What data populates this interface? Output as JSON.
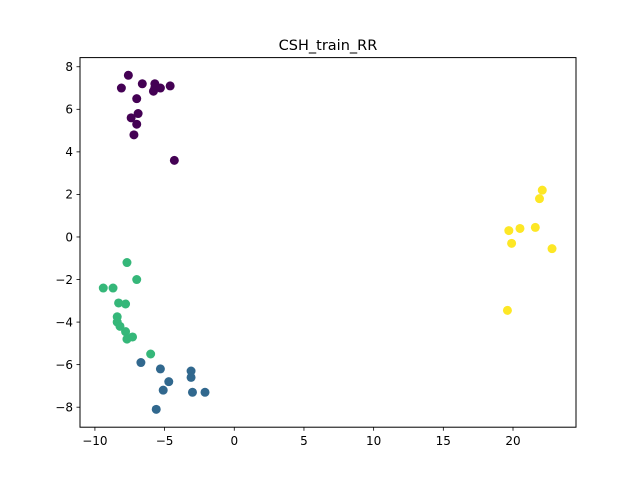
{
  "chart_data": {
    "type": "scatter",
    "title": "CSH_train_RR",
    "xlabel": "",
    "ylabel": "",
    "xlim": [
      -11.07,
      24.52
    ],
    "ylim": [
      -8.94,
      8.43
    ],
    "xticks": [
      -10,
      -5,
      0,
      5,
      10,
      15,
      20
    ],
    "yticks": [
      -8,
      -6,
      -4,
      -2,
      0,
      2,
      4,
      6,
      8
    ],
    "grid": false,
    "legend": "none",
    "colors": {
      "cluster0": "#440154",
      "cluster1": "#31688e",
      "cluster2": "#35b779",
      "cluster3": "#fde725"
    },
    "series": [
      {
        "color_key": "cluster0",
        "points": [
          [
            -7.6,
            7.6
          ],
          [
            -8.1,
            7.0
          ],
          [
            -6.6,
            7.2
          ],
          [
            -5.7,
            7.2
          ],
          [
            -5.7,
            7.0
          ],
          [
            -5.8,
            6.85
          ],
          [
            -5.3,
            7.0
          ],
          [
            -4.6,
            7.1
          ],
          [
            -7.0,
            6.5
          ],
          [
            -6.9,
            5.8
          ],
          [
            -7.4,
            5.6
          ],
          [
            -7.0,
            5.3
          ],
          [
            -7.2,
            4.8
          ],
          [
            -4.3,
            3.6
          ]
        ]
      },
      {
        "color_key": "cluster1",
        "points": [
          [
            -6.7,
            -5.9
          ],
          [
            -5.3,
            -6.2
          ],
          [
            -4.7,
            -6.8
          ],
          [
            -5.1,
            -7.2
          ],
          [
            -5.6,
            -8.1
          ],
          [
            -3.1,
            -6.3
          ],
          [
            -3.1,
            -6.6
          ],
          [
            -3.0,
            -7.3
          ],
          [
            -2.1,
            -7.3
          ]
        ]
      },
      {
        "color_key": "cluster2",
        "points": [
          [
            -7.7,
            -1.2
          ],
          [
            -7.0,
            -2.0
          ],
          [
            -9.4,
            -2.4
          ],
          [
            -8.7,
            -2.4
          ],
          [
            -8.3,
            -3.1
          ],
          [
            -7.8,
            -3.15
          ],
          [
            -8.4,
            -3.75
          ],
          [
            -8.4,
            -4.0
          ],
          [
            -8.2,
            -4.2
          ],
          [
            -7.8,
            -4.45
          ],
          [
            -7.7,
            -4.8
          ],
          [
            -7.3,
            -4.7
          ],
          [
            -6.0,
            -5.5
          ]
        ]
      },
      {
        "color_key": "cluster3",
        "points": [
          [
            22.1,
            2.2
          ],
          [
            21.9,
            1.8
          ],
          [
            21.6,
            0.45
          ],
          [
            20.5,
            0.4
          ],
          [
            19.7,
            0.3
          ],
          [
            19.9,
            -0.3
          ],
          [
            22.8,
            -0.55
          ],
          [
            19.6,
            -3.45
          ]
        ]
      }
    ]
  }
}
